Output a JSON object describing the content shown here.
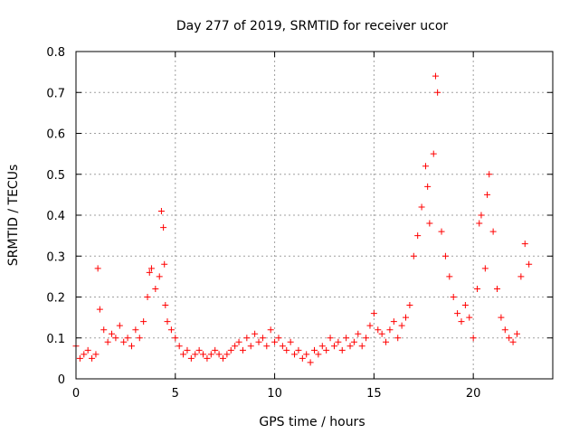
{
  "chart_data": {
    "type": "scatter",
    "title": "Day 277 of 2019, SRMTID for receiver ucor",
    "xlabel": "GPS time / hours",
    "ylabel": "SRMTID / TECUs",
    "xlim": [
      0,
      24
    ],
    "ylim": [
      0,
      0.8
    ],
    "xticks": [
      0,
      5,
      10,
      15,
      20
    ],
    "yticks": [
      0,
      0.1,
      0.2,
      0.3,
      0.4,
      0.5,
      0.6,
      0.7,
      0.8
    ],
    "grid": true,
    "marker": "+",
    "color": "#ff0000",
    "series": [
      {
        "name": "SRMTID",
        "x": [
          0.0,
          0.2,
          0.4,
          0.6,
          0.8,
          1.0,
          1.1,
          1.2,
          1.4,
          1.6,
          1.8,
          2.0,
          2.2,
          2.4,
          2.6,
          2.8,
          3.0,
          3.2,
          3.4,
          3.6,
          3.7,
          3.8,
          4.0,
          4.2,
          4.3,
          4.4,
          4.45,
          4.5,
          4.6,
          4.8,
          5.0,
          5.2,
          5.4,
          5.6,
          5.8,
          6.0,
          6.2,
          6.4,
          6.6,
          6.8,
          7.0,
          7.2,
          7.4,
          7.6,
          7.8,
          8.0,
          8.2,
          8.4,
          8.6,
          8.8,
          9.0,
          9.2,
          9.4,
          9.6,
          9.8,
          10.0,
          10.2,
          10.4,
          10.6,
          10.8,
          11.0,
          11.2,
          11.4,
          11.6,
          11.8,
          12.0,
          12.2,
          12.4,
          12.6,
          12.8,
          13.0,
          13.2,
          13.4,
          13.6,
          13.8,
          14.0,
          14.2,
          14.4,
          14.6,
          14.8,
          15.0,
          15.2,
          15.4,
          15.6,
          15.8,
          16.0,
          16.2,
          16.4,
          16.6,
          16.8,
          17.0,
          17.2,
          17.4,
          17.6,
          17.7,
          17.8,
          18.0,
          18.1,
          18.2,
          18.4,
          18.6,
          18.8,
          19.0,
          19.2,
          19.4,
          19.6,
          19.8,
          20.0,
          20.2,
          20.3,
          20.4,
          20.6,
          20.7,
          20.8,
          21.0,
          21.2,
          21.4,
          21.6,
          21.8,
          22.0,
          22.2,
          22.4,
          22.6,
          22.8
        ],
        "y": [
          0.08,
          0.05,
          0.06,
          0.07,
          0.05,
          0.06,
          0.27,
          0.17,
          0.12,
          0.09,
          0.11,
          0.1,
          0.13,
          0.09,
          0.1,
          0.08,
          0.12,
          0.1,
          0.14,
          0.2,
          0.26,
          0.27,
          0.22,
          0.25,
          0.41,
          0.37,
          0.28,
          0.18,
          0.14,
          0.12,
          0.1,
          0.08,
          0.06,
          0.07,
          0.05,
          0.06,
          0.07,
          0.06,
          0.05,
          0.06,
          0.07,
          0.06,
          0.05,
          0.06,
          0.07,
          0.08,
          0.09,
          0.07,
          0.1,
          0.08,
          0.11,
          0.09,
          0.1,
          0.08,
          0.12,
          0.09,
          0.1,
          0.08,
          0.07,
          0.09,
          0.06,
          0.07,
          0.05,
          0.06,
          0.04,
          0.07,
          0.06,
          0.08,
          0.07,
          0.1,
          0.08,
          0.09,
          0.07,
          0.1,
          0.08,
          0.09,
          0.11,
          0.08,
          0.1,
          0.13,
          0.16,
          0.12,
          0.11,
          0.09,
          0.12,
          0.14,
          0.1,
          0.13,
          0.15,
          0.18,
          0.3,
          0.35,
          0.42,
          0.52,
          0.47,
          0.38,
          0.55,
          0.74,
          0.7,
          0.36,
          0.3,
          0.25,
          0.2,
          0.16,
          0.14,
          0.18,
          0.15,
          0.1,
          0.22,
          0.38,
          0.4,
          0.27,
          0.45,
          0.5,
          0.36,
          0.22,
          0.15,
          0.12,
          0.1,
          0.09,
          0.11,
          0.25,
          0.33,
          0.28
        ]
      }
    ]
  }
}
